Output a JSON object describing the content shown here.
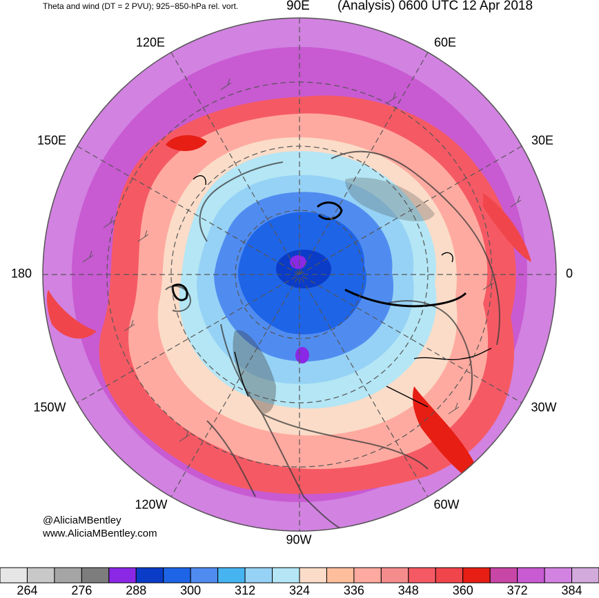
{
  "header": {
    "subtitle": "Theta and wind (DT = 2 PVU); 925−850-hPa rel. vort.",
    "top_label": "90E",
    "title": "(Analysis) 0600 UTC 12 Apr 2018"
  },
  "longitudes": [
    "90E",
    "60E",
    "30E",
    "0",
    "30W",
    "60W",
    "90W",
    "120W",
    "150W",
    "180",
    "150E",
    "120E"
  ],
  "credits": {
    "handle": "@AliciaMBentley",
    "website": "www.AliciaMBentley.com"
  },
  "colorbar": {
    "colors": [
      "#e6e6e6",
      "#c8c8c8",
      "#a5a5a5",
      "#7d7d7d",
      "#8b28e6",
      "#0a3cc8",
      "#1e64e6",
      "#508cf0",
      "#46b4f0",
      "#96d2f5",
      "#b4e6f5",
      "#fadcc8",
      "#ffbe9b",
      "#ffaaa0",
      "#f58c8c",
      "#f55a64",
      "#f0464b",
      "#e61e14",
      "#c846a5",
      "#c85ad2",
      "#d282e1",
      "#d2aadc"
    ],
    "labels": [
      "264",
      "276",
      "288",
      "300",
      "312",
      "324",
      "336",
      "348",
      "360",
      "372",
      "384"
    ]
  }
}
